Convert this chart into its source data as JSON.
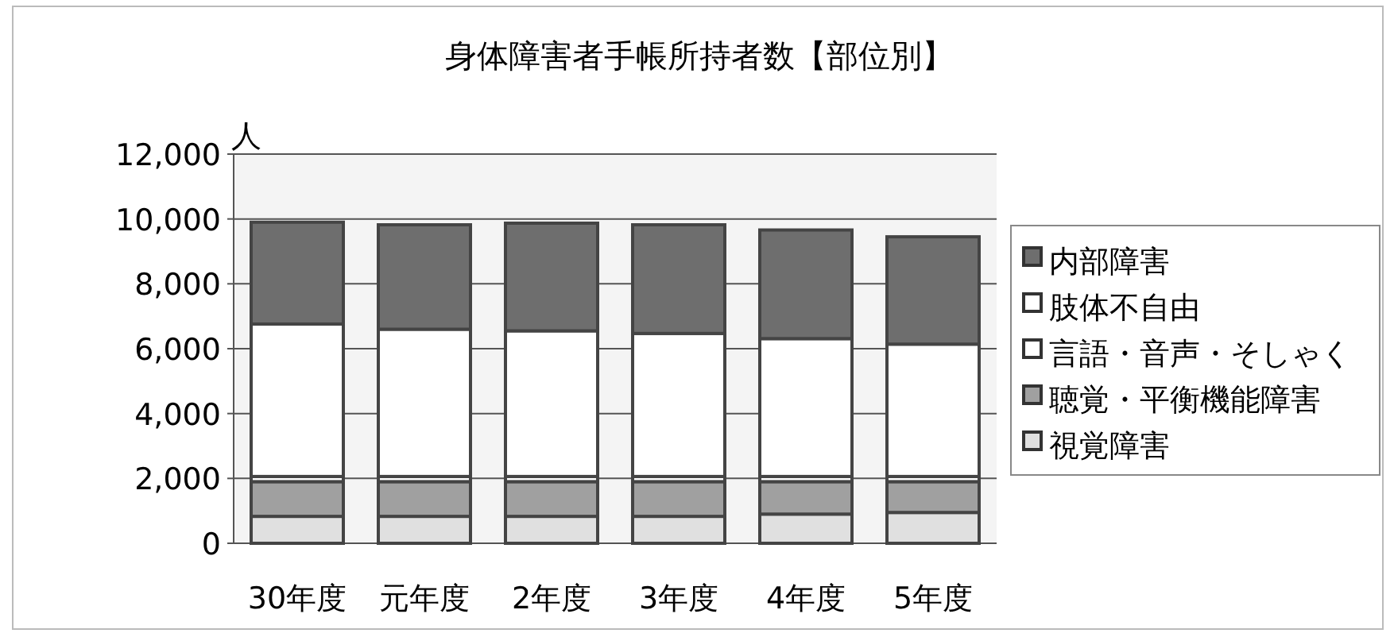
{
  "chart_data": {
    "type": "bar",
    "stacked": true,
    "title": "身体障害者手帳所持者数【部位別】",
    "ylabel": "人",
    "categories": [
      "30年度",
      "元年度",
      "2年度",
      "3年度",
      "4年度",
      "5年度"
    ],
    "series": [
      {
        "name": "視覚障害",
        "color": "#e0e0e0",
        "values": [
          830,
          830,
          830,
          830,
          900,
          950
        ]
      },
      {
        "name": "聴覚・平衡機能障害",
        "color": "#a0a0a0",
        "values": [
          1070,
          1070,
          1070,
          1070,
          1000,
          950
        ]
      },
      {
        "name": "言語・音声・そしゃく",
        "color": "#ffffff",
        "values": [
          160,
          160,
          160,
          160,
          160,
          160
        ]
      },
      {
        "name": "肢体不自由",
        "color": "#ffffff",
        "values": [
          4700,
          4540,
          4490,
          4410,
          4250,
          4080
        ]
      },
      {
        "name": "内部障害",
        "color": "#6e6e6e",
        "values": [
          3140,
          3220,
          3320,
          3350,
          3350,
          3310
        ]
      }
    ],
    "ylim": [
      0,
      12000
    ],
    "yticks": [
      {
        "value": 0,
        "label": "0"
      },
      {
        "value": 2000,
        "label": "2,000"
      },
      {
        "value": 4000,
        "label": "4,000"
      },
      {
        "value": 6000,
        "label": "6,000"
      },
      {
        "value": 8000,
        "label": "8,000"
      },
      {
        "value": 10000,
        "label": "10,000"
      },
      {
        "value": 12000,
        "label": "12,000"
      }
    ],
    "grid": "y",
    "legend": "right"
  }
}
